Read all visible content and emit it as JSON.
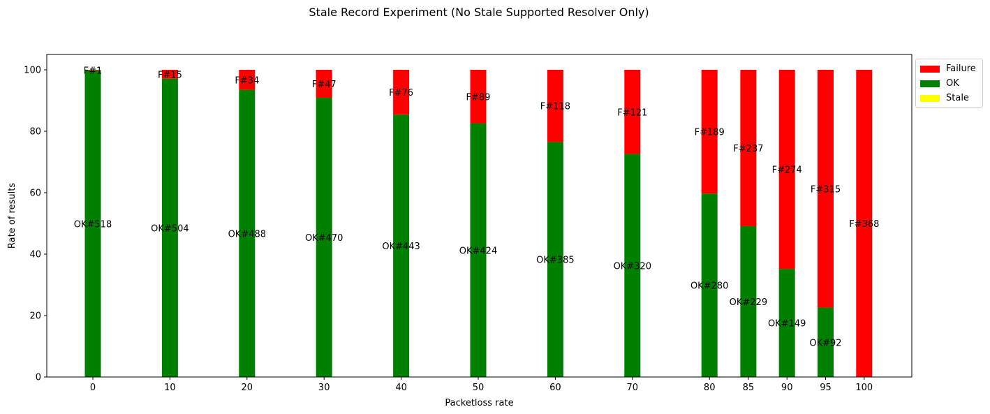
{
  "chart_data": {
    "type": "bar",
    "stacked": true,
    "title": "Stale Record Experiment (No Stale Supported Resolver Only)",
    "xlabel": "Packetloss rate",
    "ylabel": "Rate of results",
    "ylim": [
      0,
      105
    ],
    "yticks": [
      0,
      20,
      40,
      60,
      80,
      100
    ],
    "categories": [
      "0",
      "10",
      "20",
      "30",
      "40",
      "50",
      "60",
      "70",
      "80",
      "85",
      "90",
      "95",
      "100"
    ],
    "series": [
      {
        "name": "Stale",
        "color": "#ffff00",
        "values": [
          0,
          0,
          0,
          0,
          0,
          0,
          0,
          0,
          0,
          0,
          0,
          0,
          0
        ],
        "labels": []
      },
      {
        "name": "OK",
        "color": "#008000",
        "values": [
          99.8,
          97.1,
          93.5,
          90.9,
          85.4,
          82.6,
          76.5,
          72.6,
          59.7,
          49.1,
          35.2,
          22.6,
          0
        ],
        "labels": [
          "OK#518",
          "OK#504",
          "OK#488",
          "OK#470",
          "OK#443",
          "OK#424",
          "OK#385",
          "OK#320",
          "OK#280",
          "OK#229",
          "OK#149",
          "OK#92",
          ""
        ]
      },
      {
        "name": "Failure",
        "color": "#ff0000",
        "values": [
          0.2,
          2.9,
          6.5,
          9.1,
          14.6,
          17.4,
          23.5,
          27.4,
          40.3,
          50.9,
          64.8,
          77.4,
          100
        ],
        "labels": [
          "F#1",
          "F#15",
          "F#34",
          "F#47",
          "F#76",
          "F#89",
          "F#118",
          "F#121",
          "F#189",
          "F#237",
          "F#274",
          "F#315",
          "F#368"
        ]
      }
    ],
    "legend": {
      "placement": "outside-top-right",
      "order": [
        "Failure",
        "OK",
        "Stale"
      ]
    },
    "grid": false
  }
}
